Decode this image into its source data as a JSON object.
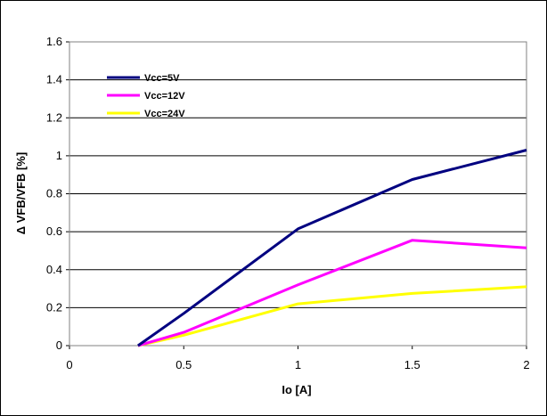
{
  "chart_data": {
    "type": "line",
    "title": "",
    "xlabel": "Io [A]",
    "ylabel": "Δ VFB/VFB [%]",
    "xlim": [
      0,
      2
    ],
    "ylim": [
      0,
      1.6
    ],
    "x_ticks": [
      "0",
      "0.5",
      "1",
      "1.5",
      "2"
    ],
    "y_ticks": [
      "0",
      "0.2",
      "0.4",
      "0.6",
      "0.8",
      "1",
      "1.2",
      "1.4",
      "1.6"
    ],
    "grid": "horizontal",
    "legend_position": "top-left",
    "x": [
      0.3,
      0.5,
      1,
      1.5,
      2
    ],
    "series": [
      {
        "name": "Vcc=5V",
        "color": "#000080",
        "values": [
          0,
          0.17,
          0.615,
          0.875,
          1.03
        ]
      },
      {
        "name": "Vcc=12V",
        "color": "#ff00ff",
        "values": [
          0,
          0.07,
          0.32,
          0.555,
          0.515
        ]
      },
      {
        "name": "Vcc=24V",
        "color": "#ffff00",
        "values": [
          0,
          0.055,
          0.22,
          0.275,
          0.31
        ]
      }
    ]
  }
}
